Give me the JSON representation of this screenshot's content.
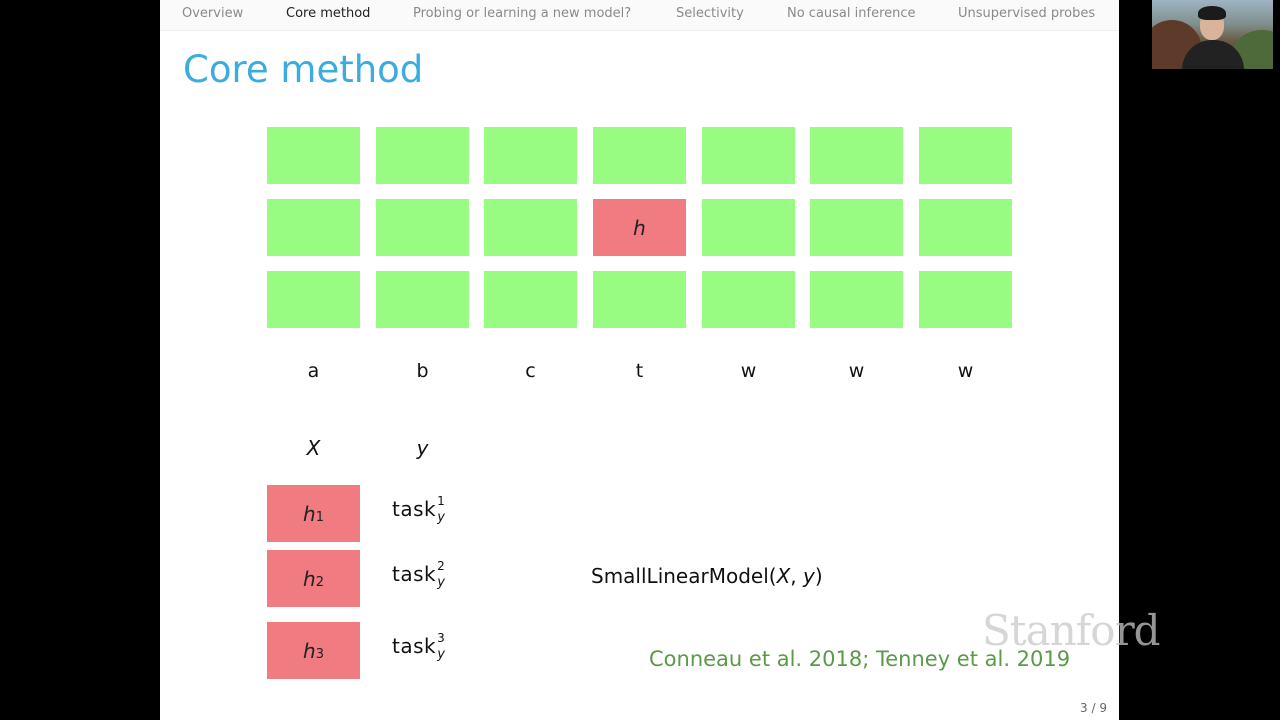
{
  "nav": {
    "items": [
      {
        "label": "Overview",
        "active": false
      },
      {
        "label": "Core method",
        "active": true
      },
      {
        "label": "Probing or learning a new model?",
        "active": false
      },
      {
        "label": "Selectivity",
        "active": false
      },
      {
        "label": "No causal inference",
        "active": false
      },
      {
        "label": "Unsupervised probes",
        "active": false
      }
    ]
  },
  "slide": {
    "title": "Core method",
    "highlight_label": "h",
    "tokens": [
      "a",
      "b",
      "c",
      "t",
      "w",
      "w",
      "w"
    ],
    "x_label": "X",
    "y_label": "y",
    "rows": [
      {
        "h": "h",
        "h_sub": "1",
        "task": "task",
        "task_sup": "1",
        "task_sub": "y"
      },
      {
        "h": "h",
        "h_sub": "2",
        "task": "task",
        "task_sup": "2",
        "task_sub": "y"
      },
      {
        "h": "h",
        "h_sub": "3",
        "task": "task",
        "task_sup": "3",
        "task_sub": "y"
      }
    ],
    "model": {
      "name": "SmallLinearModel",
      "open": "(",
      "arg1": "X",
      "sep": ", ",
      "arg2": "y",
      "close": ")"
    },
    "citation": "Conneau et al. 2018; Tenney et al. 2019",
    "page": "3 / 9",
    "logo": "Stanford"
  },
  "colors": {
    "title": "#3aace0",
    "cell_green": "#98fb82",
    "cell_red": "#f07b80",
    "citation": "#5a9a48"
  }
}
